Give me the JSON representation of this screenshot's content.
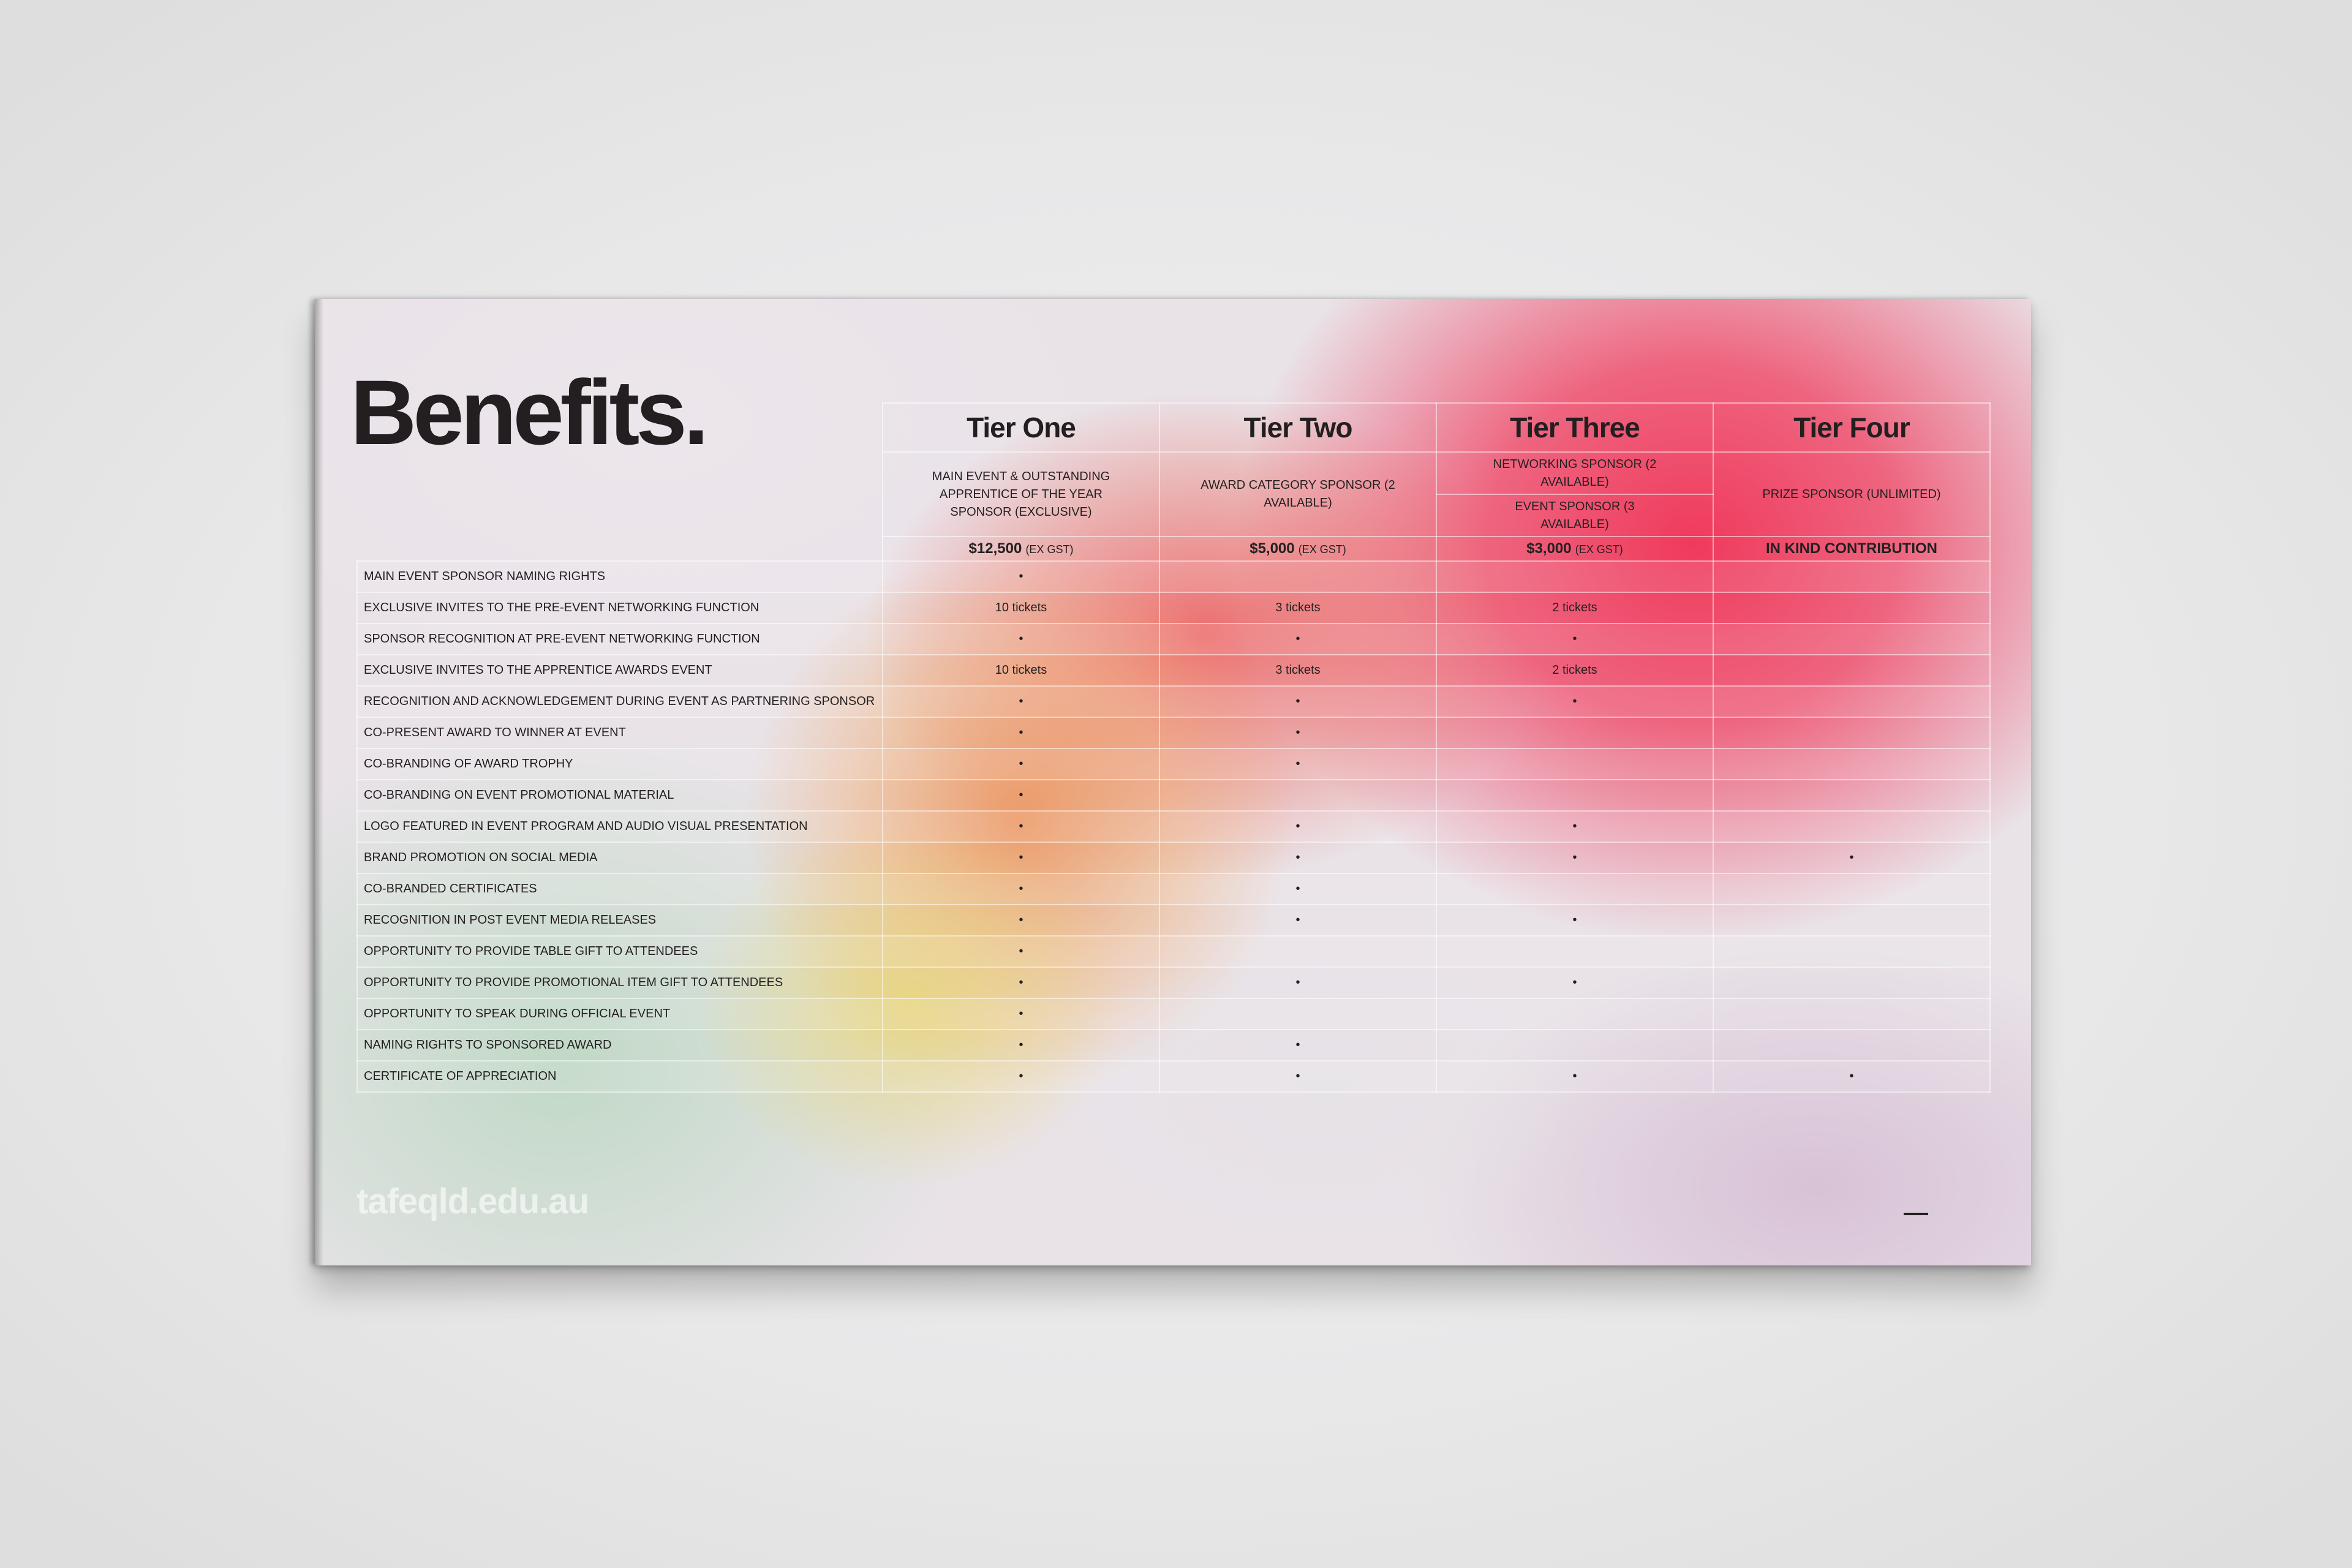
{
  "page": {
    "title": "Benefits.",
    "site_url": "tafeqld.edu.au"
  },
  "tiers": [
    {
      "name": "Tier One",
      "description": "MAIN EVENT & OUTSTANDING APPRENTICE OF THE YEAR SPONSOR (EXCLUSIVE)",
      "price": "$12,500",
      "price_note": "(EX GST)"
    },
    {
      "name": "Tier Two",
      "description": "AWARD CATEGORY SPONSOR (2 AVAILABLE)",
      "price": "$5,000",
      "price_note": "(EX GST)"
    },
    {
      "name": "Tier Three",
      "description": "NETWORKING SPONSOR (2 AVAILABLE)",
      "description_2": "EVENT SPONSOR (3 AVAILABLE)",
      "price": "$3,000",
      "price_note": "(EX GST)"
    },
    {
      "name": "Tier Four",
      "description": "PRIZE SPONSOR (UNLIMITED)",
      "price": "IN KIND CONTRIBUTION",
      "price_note": ""
    }
  ],
  "rows": [
    {
      "label": "MAIN EVENT SPONSOR NAMING RIGHTS",
      "values": [
        "•",
        "",
        "",
        ""
      ]
    },
    {
      "label": "EXCLUSIVE INVITES TO THE PRE-EVENT NETWORKING FUNCTION",
      "values": [
        "10 tickets",
        "3 tickets",
        "2 tickets",
        ""
      ]
    },
    {
      "label": "SPONSOR RECOGNITION AT PRE-EVENT NETWORKING FUNCTION",
      "values": [
        "•",
        "•",
        "•",
        ""
      ]
    },
    {
      "label": "EXCLUSIVE INVITES TO THE APPRENTICE AWARDS EVENT",
      "values": [
        "10 tickets",
        "3 tickets",
        "2 tickets",
        ""
      ]
    },
    {
      "label": "RECOGNITION AND ACKNOWLEDGEMENT DURING EVENT AS PARTNERING SPONSOR",
      "values": [
        "•",
        "•",
        "•",
        ""
      ]
    },
    {
      "label": "CO-PRESENT AWARD TO WINNER AT EVENT",
      "values": [
        "•",
        "•",
        "",
        ""
      ]
    },
    {
      "label": "CO-BRANDING OF AWARD TROPHY",
      "values": [
        "•",
        "•",
        "",
        ""
      ]
    },
    {
      "label": "CO-BRANDING ON EVENT PROMOTIONAL MATERIAL",
      "values": [
        "•",
        "",
        "",
        ""
      ]
    },
    {
      "label": "LOGO FEATURED IN EVENT PROGRAM AND AUDIO VISUAL PRESENTATION",
      "values": [
        "•",
        "•",
        "•",
        ""
      ]
    },
    {
      "label": "BRAND PROMOTION ON SOCIAL MEDIA",
      "values": [
        "•",
        "•",
        "•",
        "•"
      ]
    },
    {
      "label": "CO-BRANDED CERTIFICATES",
      "values": [
        "•",
        "•",
        "",
        ""
      ]
    },
    {
      "label": "RECOGNITION IN POST EVENT MEDIA RELEASES",
      "values": [
        "•",
        "•",
        "•",
        ""
      ]
    },
    {
      "label": "OPPORTUNITY TO PROVIDE TABLE GIFT TO ATTENDEES",
      "values": [
        "•",
        "",
        "",
        ""
      ]
    },
    {
      "label": "OPPORTUNITY TO PROVIDE PROMOTIONAL ITEM GIFT TO ATTENDEES",
      "values": [
        "•",
        "•",
        "•",
        ""
      ]
    },
    {
      "label": "OPPORTUNITY TO SPEAK DURING OFFICIAL EVENT",
      "values": [
        "•",
        "",
        "",
        ""
      ]
    },
    {
      "label": "NAMING RIGHTS TO SPONSORED AWARD",
      "values": [
        "•",
        "•",
        "",
        ""
      ]
    },
    {
      "label": "CERTIFICATE OF APPRECIATION",
      "values": [
        "•",
        "•",
        "•",
        "•"
      ]
    }
  ]
}
